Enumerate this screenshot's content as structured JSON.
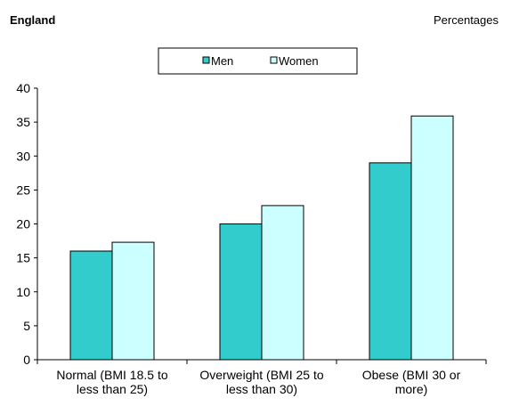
{
  "header": {
    "region": "England",
    "units": "Percentages"
  },
  "colors": {
    "men": "#33cccc",
    "women": "#ccffff",
    "axis": "#000000"
  },
  "chart_data": {
    "type": "bar",
    "categories": [
      [
        "Normal (BMI 18.5 to",
        "less than 25)"
      ],
      [
        "Overweight (BMI 25 to",
        "less than 30)"
      ],
      [
        "Obese (BMI 30 or",
        "more)"
      ]
    ],
    "series": [
      {
        "name": "Men",
        "values": [
          16,
          20,
          29
        ]
      },
      {
        "name": "Women",
        "values": [
          17.3,
          22.7,
          35.9
        ]
      }
    ],
    "ylim": [
      0,
      40
    ],
    "yticks": [
      "0",
      "5",
      "10",
      "15",
      "20",
      "25",
      "30",
      "35",
      "40"
    ],
    "legend_position": "top-center",
    "grid": false
  }
}
